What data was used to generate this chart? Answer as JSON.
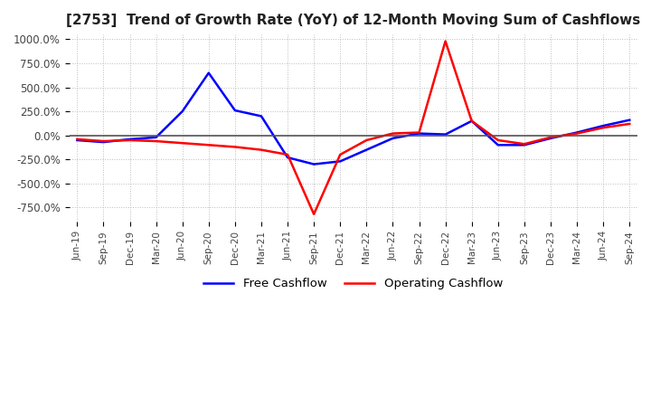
{
  "title": "[2753]  Trend of Growth Rate (YoY) of 12-Month Moving Sum of Cashflows",
  "title_fontsize": 11,
  "ylim": [
    -900,
    1050
  ],
  "yticks": [
    -750,
    -500,
    -250,
    0,
    250,
    500,
    750,
    1000
  ],
  "yticklabels": [
    "-750.0%",
    "-500.0%",
    "-250.0%",
    "0.0%",
    "250.0%",
    "500.0%",
    "750.0%",
    "1000.0%"
  ],
  "background_color": "#ffffff",
  "grid_color": "#bbbbbb",
  "operating_color": "#ff0000",
  "free_color": "#0000ff",
  "legend_labels": [
    "Operating Cashflow",
    "Free Cashflow"
  ],
  "x_labels": [
    "Jun-19",
    "Sep-19",
    "Dec-19",
    "Mar-20",
    "Jun-20",
    "Sep-20",
    "Dec-20",
    "Mar-21",
    "Jun-21",
    "Sep-21",
    "Dec-21",
    "Mar-22",
    "Jun-22",
    "Sep-22",
    "Dec-22",
    "Mar-23",
    "Jun-23",
    "Sep-23",
    "Dec-23",
    "Mar-24",
    "Jun-24",
    "Sep-24"
  ],
  "operating_cashflow": [
    -40,
    -60,
    -50,
    -60,
    -80,
    -100,
    -120,
    -150,
    -200,
    -820,
    -200,
    -50,
    20,
    30,
    980,
    150,
    -50,
    -90,
    -20,
    20,
    80,
    120
  ],
  "free_cashflow": [
    -50,
    -70,
    -40,
    -20,
    250,
    650,
    260,
    200,
    -230,
    -300,
    -270,
    -150,
    -30,
    20,
    10,
    150,
    -100,
    -100,
    -30,
    30,
    100,
    160
  ]
}
